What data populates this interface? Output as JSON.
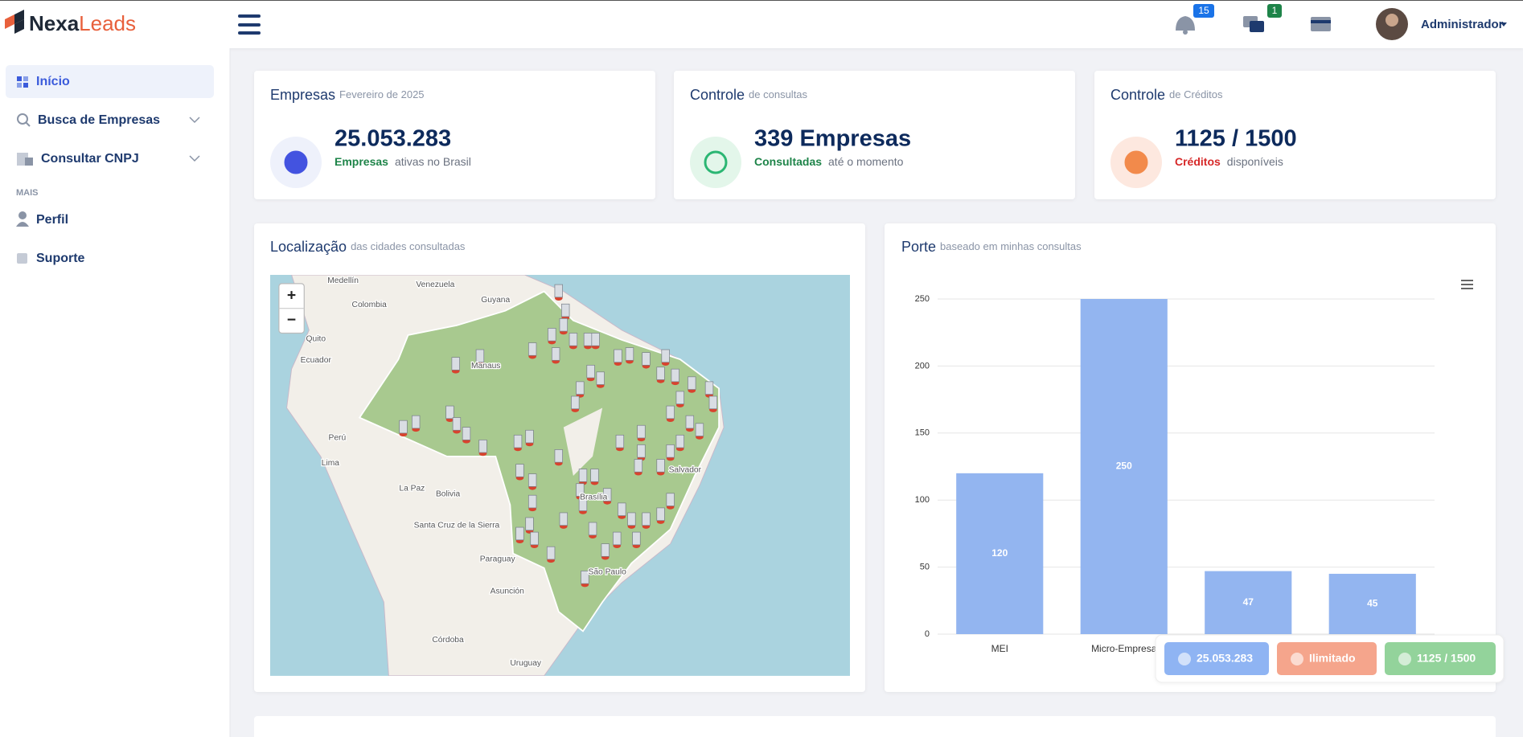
{
  "header": {
    "logo_part1": "Nexa",
    "logo_part2": "Leads",
    "notifications": "15",
    "messages": "1",
    "user": "Administrador"
  },
  "sidebar": {
    "items": [
      "Início",
      "Busca de Empresas",
      "Consultar CNPJ"
    ],
    "section": "MAIS",
    "items2": [
      "Perfil",
      "Suporte"
    ]
  },
  "cards": [
    {
      "title": "Empresas",
      "subtitle": "Fevereiro de 2025",
      "value": "25.053.283",
      "highlight": "Empresas",
      "text": "ativas no Brasil"
    },
    {
      "title": "Controle",
      "subtitle": "de consultas",
      "value": "339 Empresas",
      "highlight": "Consultadas",
      "text": "até o momento"
    },
    {
      "title": "Controle",
      "subtitle": "de Créditos",
      "value": "1125 / 1500",
      "highlight": "Créditos",
      "text": "disponíveis"
    }
  ],
  "map": {
    "title": "Localização",
    "subtitle": "das cidades consultadas",
    "zoom_in": "+",
    "zoom_out": "−",
    "labels": [
      "Medellín",
      "Venezuela",
      "Guyana",
      "Colombia",
      "Quito",
      "Ecuador",
      "Manaus",
      "Perú",
      "Lima",
      "La Paz",
      "Bolivia",
      "Santa Cruz de la Sierra",
      "Paraguay",
      "Asunción",
      "Salvador",
      "São Paulo",
      "Córdoba",
      "Uruguay",
      "Brasília"
    ]
  },
  "chart_data": {
    "type": "bar",
    "title": "Porte",
    "subtitle": "baseado em minhas consultas",
    "categories": [
      "MEI",
      "Micro-Empresa",
      null,
      null
    ],
    "values": [
      120,
      250,
      47,
      45
    ],
    "color": "#93b5f0",
    "ylim": [
      0,
      250
    ],
    "yticks": [
      0,
      50,
      100,
      150,
      200,
      250
    ],
    "grid": true
  },
  "floating": [
    "25.053.283",
    "Ilimitado",
    "1125 / 1500"
  ]
}
